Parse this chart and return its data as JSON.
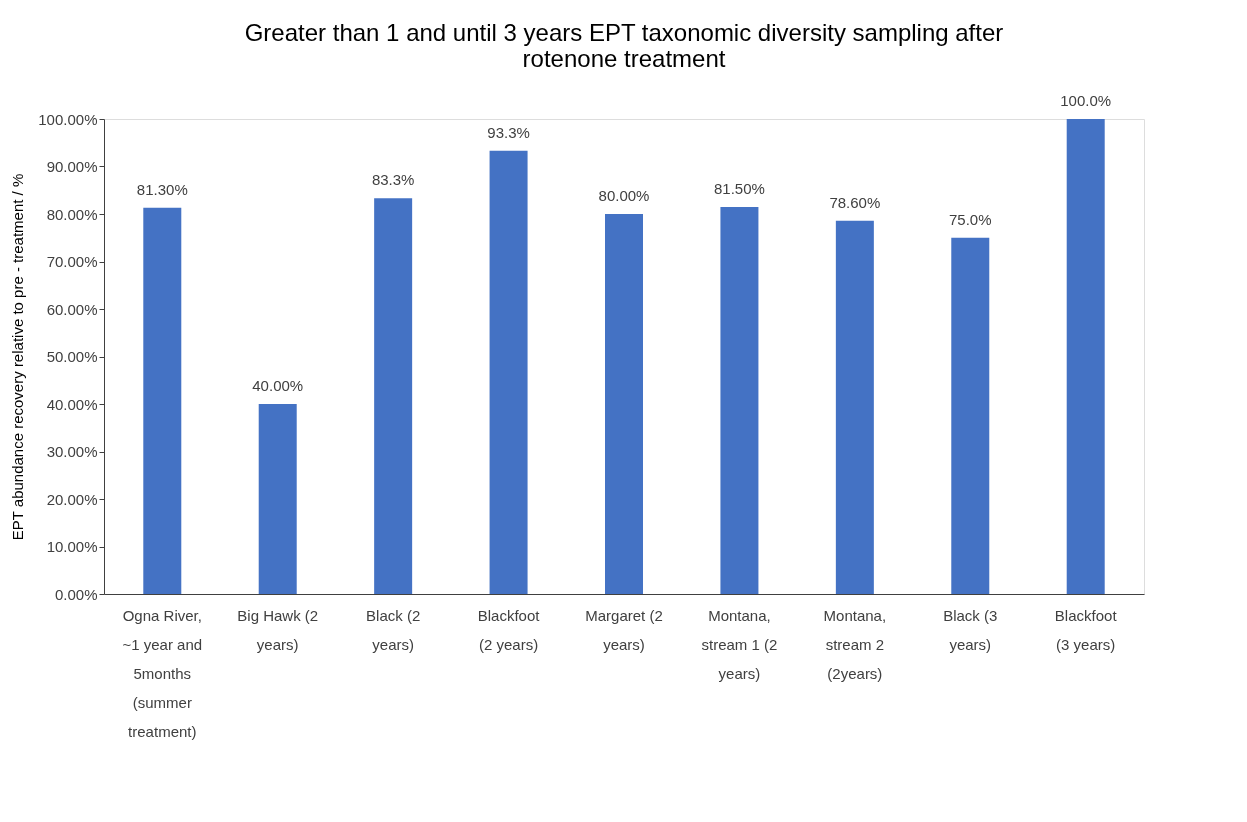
{
  "chart_data": {
    "type": "bar",
    "title": "Greater than 1 and until 3 years EPT taxonomic diversity sampling after rotenone treatment",
    "ylabel": "EPT abundance recovery relative to pre  - treatment / %",
    "categories": [
      "Ogna River, ~1 year and 5months (summer treatment)",
      "Big Hawk (2 years)",
      "Black (2 years)",
      "Blackfoot (2 years)",
      "Margaret (2 years)",
      "Montana, stream 1 (2 years)",
      "Montana, stream 2 (2years)",
      "Black (3 years)",
      "Blackfoot (3 years)"
    ],
    "values": [
      81.3,
      40.0,
      83.3,
      93.3,
      80.0,
      81.5,
      78.6,
      75.0,
      100.0
    ],
    "value_labels": [
      "81.30%",
      "40.00%",
      "83.3%",
      "93.3%",
      "80.00%",
      "81.50%",
      "78.60%",
      "75.0%",
      "100.0%"
    ],
    "color": "#4472c4",
    "ylim": [
      0,
      100
    ],
    "yticks": [
      {
        "value": 0,
        "label": "0.00%"
      },
      {
        "value": 10,
        "label": "10.00%"
      },
      {
        "value": 20,
        "label": "20.00%"
      },
      {
        "value": 30,
        "label": "30.00%"
      },
      {
        "value": 40,
        "label": "40.00%"
      },
      {
        "value": 50,
        "label": "50.00%"
      },
      {
        "value": 60,
        "label": "60.00%"
      },
      {
        "value": 70,
        "label": "70.00%"
      },
      {
        "value": 80,
        "label": "80.00%"
      },
      {
        "value": 90,
        "label": "90.00%"
      },
      {
        "value": 100,
        "label": "100.00%"
      }
    ],
    "grid": false
  }
}
